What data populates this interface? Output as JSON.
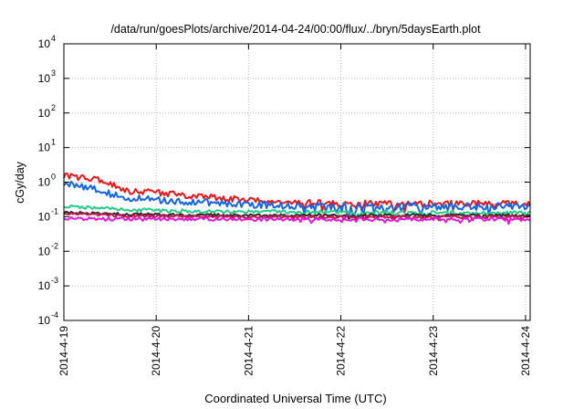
{
  "chart_data": {
    "type": "line",
    "title": "/data/run/goesPlots/archive/2014-04-24/00:00/flux/../bryn/5daysEarth.plot",
    "xlabel": "Coordinated Universal Time (UTC)",
    "ylabel": "cGy/day",
    "y_scale": "log",
    "ylim": [
      0.0001,
      10000
    ],
    "xlim_days": [
      0,
      5.05
    ],
    "grid": true,
    "x_ticks": [
      {
        "day": 0,
        "label": "2014-4-19"
      },
      {
        "day": 1,
        "label": "2014-4-20"
      },
      {
        "day": 2,
        "label": "2014-4-21"
      },
      {
        "day": 3,
        "label": "2014-4-22"
      },
      {
        "day": 4,
        "label": "2014-4-23"
      },
      {
        "day": 5,
        "label": "2014-4-24"
      }
    ],
    "y_ticks": [
      {
        "exp": -4,
        "label": "10",
        "sup": "-4"
      },
      {
        "exp": -3,
        "label": "10",
        "sup": "-3"
      },
      {
        "exp": -2,
        "label": "10",
        "sup": "-2"
      },
      {
        "exp": -1,
        "label": "10",
        "sup": "-1"
      },
      {
        "exp": 0,
        "label": "10",
        "sup": "0"
      },
      {
        "exp": 1,
        "label": "10",
        "sup": "1"
      },
      {
        "exp": 2,
        "label": "10",
        "sup": "2"
      },
      {
        "exp": 3,
        "label": "10",
        "sup": "3"
      },
      {
        "exp": 4,
        "label": "10",
        "sup": "4"
      }
    ],
    "series": [
      {
        "color": "#e8161b",
        "x": [
          0,
          0.3,
          0.5,
          0.7,
          1.0,
          1.5,
          2.0,
          2.5,
          3.0,
          3.5,
          4.0,
          4.5,
          5.05
        ],
        "values": [
          1.5,
          1.3,
          0.9,
          0.55,
          0.5,
          0.38,
          0.3,
          0.26,
          0.24,
          0.24,
          0.24,
          0.24,
          0.24
        ],
        "noise": 0.09
      },
      {
        "color": "#1565e0",
        "x": [
          0,
          0.3,
          0.5,
          0.7,
          1.0,
          1.5,
          2.0,
          2.5,
          3.0,
          3.5,
          4.0,
          4.5,
          5.05
        ],
        "values": [
          0.9,
          0.7,
          0.45,
          0.35,
          0.3,
          0.26,
          0.23,
          0.21,
          0.2,
          0.2,
          0.2,
          0.2,
          0.2
        ],
        "noise": 0.1
      },
      {
        "color": "#22cc88",
        "x": [
          0,
          0.5,
          1.0,
          2.0,
          3.0,
          4.0,
          5.05
        ],
        "values": [
          0.2,
          0.17,
          0.15,
          0.14,
          0.135,
          0.13,
          0.13
        ],
        "noise": 0.05
      },
      {
        "color": "#2a2a2a",
        "x": [
          0,
          0.5,
          1.0,
          2.0,
          3.0,
          4.0,
          5.05
        ],
        "values": [
          0.13,
          0.12,
          0.115,
          0.11,
          0.11,
          0.11,
          0.11
        ],
        "noise": 0.04
      },
      {
        "color": "#c01a4a",
        "x": [
          0,
          0.5,
          1.0,
          2.0,
          3.0,
          4.0,
          5.05
        ],
        "values": [
          0.12,
          0.11,
          0.105,
          0.1,
          0.1,
          0.1,
          0.1
        ],
        "noise": 0.04
      },
      {
        "color": "#e018d8",
        "x": [
          0,
          0.5,
          1.0,
          2.0,
          3.0,
          4.0,
          5.05
        ],
        "values": [
          0.09,
          0.085,
          0.085,
          0.085,
          0.085,
          0.085,
          0.085
        ],
        "noise": 0.05
      }
    ]
  }
}
